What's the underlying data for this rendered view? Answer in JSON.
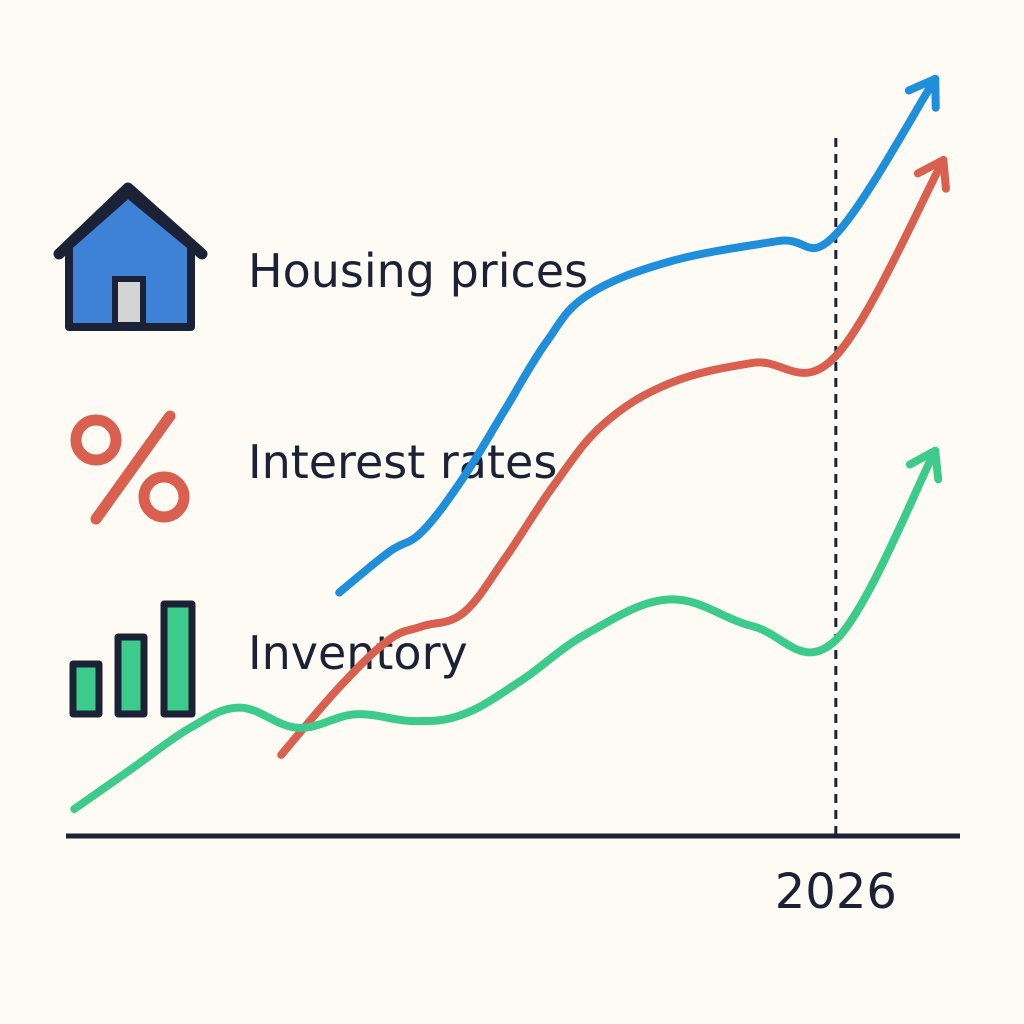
{
  "chart_data": {
    "type": "line",
    "title": "",
    "xlabel": "",
    "ylabel": "",
    "marker": {
      "label": "2026",
      "x": 2026
    },
    "xlim": [
      2016.7,
      2027.5
    ],
    "ylim": [
      0,
      100
    ],
    "grid": false,
    "legend_placement": "left",
    "series": [
      {
        "name": "Housing prices",
        "icon": "house-icon",
        "color": "#1f8fdc",
        "x": [
          2020.0,
          2020.6,
          2021.0,
          2021.5,
          2022.0,
          2022.5,
          2023.0,
          2024.0,
          2025.3,
          2026.0,
          2027.2
        ],
        "y": [
          36,
          42,
          45,
          53,
          63,
          73,
          80,
          85,
          88,
          89,
          112
        ]
      },
      {
        "name": "Interest rates",
        "icon": "percent-icon",
        "color": "#d9604f",
        "x": [
          2019.3,
          2020.0,
          2020.6,
          2021.0,
          2021.5,
          2022.0,
          2022.6,
          2023.2,
          2024.0,
          2025.0,
          2026.0,
          2027.3
        ],
        "y": [
          12,
          22,
          29,
          31,
          33,
          41,
          52,
          61,
          67,
          70,
          71,
          100
        ]
      },
      {
        "name": "Inventory",
        "icon": "bar-chart-icon",
        "color": "#3ccb8a",
        "x": [
          2016.8,
          2017.5,
          2018.2,
          2018.8,
          2019.5,
          2020.2,
          2020.9,
          2021.5,
          2022.2,
          2023.0,
          2024.0,
          2025.0,
          2026.0,
          2027.2
        ],
        "y": [
          4,
          10,
          16,
          19,
          16,
          18,
          17,
          18,
          23,
          30,
          35,
          31,
          29,
          57
        ]
      }
    ]
  }
}
